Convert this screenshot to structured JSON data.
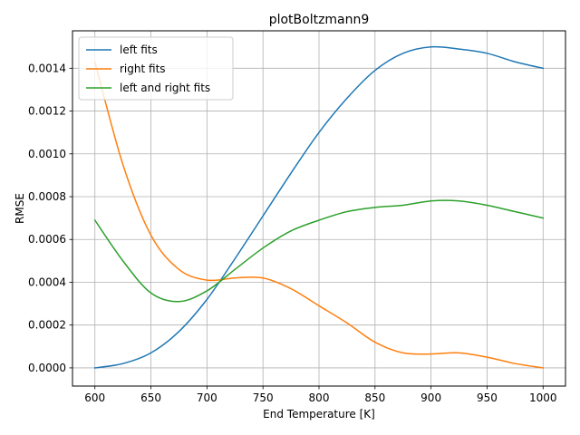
{
  "chart_data": {
    "type": "line",
    "title": "plotBoltzmann9",
    "xlabel": "End Temperature [K]",
    "ylabel": "RMSE",
    "xlim": [
      580,
      1020
    ],
    "ylim": [
      -8.5e-05,
      0.001575
    ],
    "xticks": [
      600,
      650,
      700,
      750,
      800,
      850,
      900,
      950,
      1000
    ],
    "xtick_labels": [
      "600",
      "650",
      "700",
      "750",
      "800",
      "850",
      "900",
      "950",
      "1000"
    ],
    "yticks": [
      0,
      0.0002,
      0.0004,
      0.0006,
      0.0008,
      0.001,
      0.0012,
      0.0014
    ],
    "ytick_labels": [
      "0.0000",
      "0.0002",
      "0.0004",
      "0.0006",
      "0.0008",
      "0.0010",
      "0.0012",
      "0.0014"
    ],
    "grid": true,
    "legend_position": "top-left",
    "x": [
      600,
      625,
      650,
      675,
      700,
      725,
      750,
      775,
      800,
      825,
      850,
      875,
      900,
      925,
      950,
      975,
      1000
    ],
    "series": [
      {
        "name": "left fits",
        "color": "#1f77b4",
        "values": [
          0.0,
          2e-05,
          7e-05,
          0.00017,
          0.00032,
          0.00051,
          0.00071,
          0.00091,
          0.0011,
          0.00126,
          0.00139,
          0.00147,
          0.0015,
          0.00149,
          0.00147,
          0.00143,
          0.0014
        ]
      },
      {
        "name": "right fits",
        "color": "#ff7f0e",
        "values": [
          0.00143,
          0.00095,
          0.00062,
          0.00046,
          0.00041,
          0.00042,
          0.00042,
          0.00037,
          0.00029,
          0.00021,
          0.00012,
          7e-05,
          6.5e-05,
          7e-05,
          5e-05,
          2e-05,
          0.0
        ]
      },
      {
        "name": "left and right fits",
        "color": "#2ca02c",
        "values": [
          0.00069,
          0.0005,
          0.00035,
          0.00031,
          0.00036,
          0.00046,
          0.00056,
          0.00064,
          0.00069,
          0.00073,
          0.00075,
          0.00076,
          0.00078,
          0.00078,
          0.00076,
          0.00073,
          0.0007
        ]
      }
    ]
  }
}
